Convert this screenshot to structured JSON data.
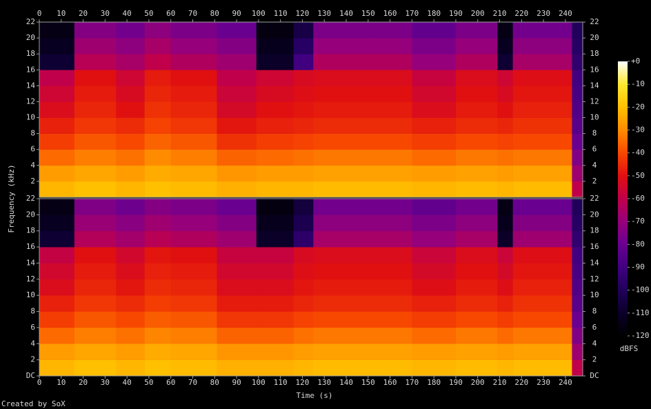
{
  "chart_data": {
    "type": "spectrogram",
    "x_label": "Time (s)",
    "y_label": "Frequency (kHz)",
    "credit": "Created by SoX",
    "xlim": [
      0,
      247.9
    ],
    "xticks": [
      0,
      10,
      20,
      30,
      40,
      50,
      60,
      70,
      80,
      90,
      100,
      110,
      120,
      130,
      140,
      150,
      160,
      170,
      180,
      190,
      200,
      210,
      220,
      230,
      240
    ],
    "ylim": [
      0,
      22
    ],
    "time_edges": [
      0,
      16,
      35,
      48,
      60,
      81,
      99,
      116,
      125,
      150,
      170,
      190,
      209,
      216,
      243,
      247.9
    ],
    "freq_edges": [
      0,
      2,
      4,
      6,
      8,
      10,
      12,
      14,
      16,
      18,
      20,
      22
    ],
    "channels": [
      {
        "yticks": [
          2,
          4,
          6,
          8,
          10,
          12,
          14,
          16,
          18,
          20,
          22
        ],
        "values": [
          [
            -22,
            -20,
            -22,
            -20,
            -21,
            -23,
            -22,
            -22,
            -21,
            -21,
            -22,
            -21,
            -22,
            -21,
            -60
          ],
          [
            -27,
            -25,
            -27,
            -24,
            -25,
            -28,
            -27,
            -27,
            -26,
            -26,
            -27,
            -26,
            -27,
            -26,
            -68
          ],
          [
            -35,
            -32,
            -34,
            -30,
            -32,
            -36,
            -35,
            -34,
            -33,
            -33,
            -35,
            -33,
            -34,
            -33,
            -75
          ],
          [
            -42,
            -38,
            -40,
            -36,
            -38,
            -44,
            -42,
            -41,
            -40,
            -40,
            -42,
            -40,
            -41,
            -40,
            -80
          ],
          [
            -47,
            -43,
            -45,
            -41,
            -43,
            -49,
            -47,
            -46,
            -45,
            -45,
            -47,
            -45,
            -46,
            -44,
            -84
          ],
          [
            -52,
            -46,
            -50,
            -44,
            -46,
            -54,
            -50,
            -49,
            -48,
            -48,
            -52,
            -48,
            -50,
            -47,
            -86
          ],
          [
            -56,
            -48,
            -53,
            -46,
            -48,
            -57,
            -53,
            -51,
            -50,
            -50,
            -55,
            -50,
            -53,
            -49,
            -88
          ],
          [
            -60,
            -50,
            -56,
            -48,
            -50,
            -60,
            -56,
            -53,
            -52,
            -52,
            -58,
            -52,
            -56,
            -51,
            -90
          ],
          [
            -108,
            -62,
            -66,
            -60,
            -64,
            -68,
            -110,
            -90,
            -64,
            -64,
            -70,
            -64,
            -108,
            -66,
            -95
          ],
          [
            -112,
            -68,
            -72,
            -66,
            -70,
            -74,
            -113,
            -98,
            -70,
            -70,
            -76,
            -70,
            -112,
            -72,
            -98
          ],
          [
            -115,
            -74,
            -78,
            -72,
            -76,
            -80,
            -116,
            -104,
            -76,
            -76,
            -82,
            -76,
            -115,
            -78,
            -100
          ]
        ]
      },
      {
        "yticks": [
          {
            "value": 0,
            "label": "DC"
          },
          2,
          4,
          6,
          8,
          10,
          12,
          14,
          16,
          18,
          20,
          22
        ],
        "values": [
          [
            -22,
            -20,
            -22,
            -20,
            -21,
            -23,
            -23,
            -22,
            -21,
            -21,
            -22,
            -21,
            -22,
            -21,
            -60
          ],
          [
            -27,
            -25,
            -27,
            -24,
            -25,
            -28,
            -28,
            -27,
            -26,
            -26,
            -27,
            -26,
            -27,
            -26,
            -68
          ],
          [
            -35,
            -32,
            -34,
            -31,
            -32,
            -36,
            -36,
            -34,
            -33,
            -33,
            -35,
            -33,
            -35,
            -33,
            -75
          ],
          [
            -42,
            -38,
            -40,
            -37,
            -38,
            -43,
            -43,
            -41,
            -40,
            -40,
            -42,
            -40,
            -42,
            -40,
            -80
          ],
          [
            -47,
            -43,
            -45,
            -42,
            -43,
            -48,
            -48,
            -46,
            -45,
            -45,
            -47,
            -45,
            -47,
            -44,
            -84
          ],
          [
            -52,
            -46,
            -49,
            -45,
            -46,
            -52,
            -52,
            -49,
            -48,
            -48,
            -51,
            -48,
            -51,
            -47,
            -86
          ],
          [
            -55,
            -48,
            -52,
            -47,
            -48,
            -55,
            -55,
            -51,
            -50,
            -50,
            -54,
            -50,
            -54,
            -49,
            -88
          ],
          [
            -59,
            -50,
            -55,
            -49,
            -50,
            -58,
            -58,
            -53,
            -52,
            -52,
            -57,
            -52,
            -57,
            -51,
            -90
          ],
          [
            -108,
            -63,
            -67,
            -62,
            -64,
            -68,
            -110,
            -96,
            -66,
            -66,
            -70,
            -66,
            -110,
            -68,
            -95
          ],
          [
            -112,
            -69,
            -73,
            -68,
            -70,
            -74,
            -113,
            -102,
            -72,
            -72,
            -76,
            -72,
            -113,
            -74,
            -98
          ],
          [
            -115,
            -75,
            -79,
            -74,
            -76,
            -80,
            -116,
            -106,
            -78,
            -78,
            -82,
            -78,
            -115,
            -80,
            -100
          ]
        ]
      }
    ],
    "colorbar": {
      "label": "dBFS",
      "lim": [
        -120,
        0
      ],
      "ticks": [
        {
          "value": 0,
          "label": "+0"
        },
        -10,
        -20,
        -30,
        -40,
        -50,
        -60,
        -70,
        -80,
        -90,
        -100,
        -110,
        -120
      ],
      "colorscale": [
        [
          -120,
          "#000000"
        ],
        [
          -110,
          "#0a0028"
        ],
        [
          -100,
          "#20005a"
        ],
        [
          -90,
          "#400080"
        ],
        [
          -80,
          "#6a0090"
        ],
        [
          -70,
          "#96007a"
        ],
        [
          -60,
          "#c0004a"
        ],
        [
          -50,
          "#e01010"
        ],
        [
          -40,
          "#f84800"
        ],
        [
          -30,
          "#ff8c00"
        ],
        [
          -20,
          "#ffc000"
        ],
        [
          -10,
          "#ffe830"
        ],
        [
          0,
          "#ffffff"
        ]
      ]
    }
  }
}
